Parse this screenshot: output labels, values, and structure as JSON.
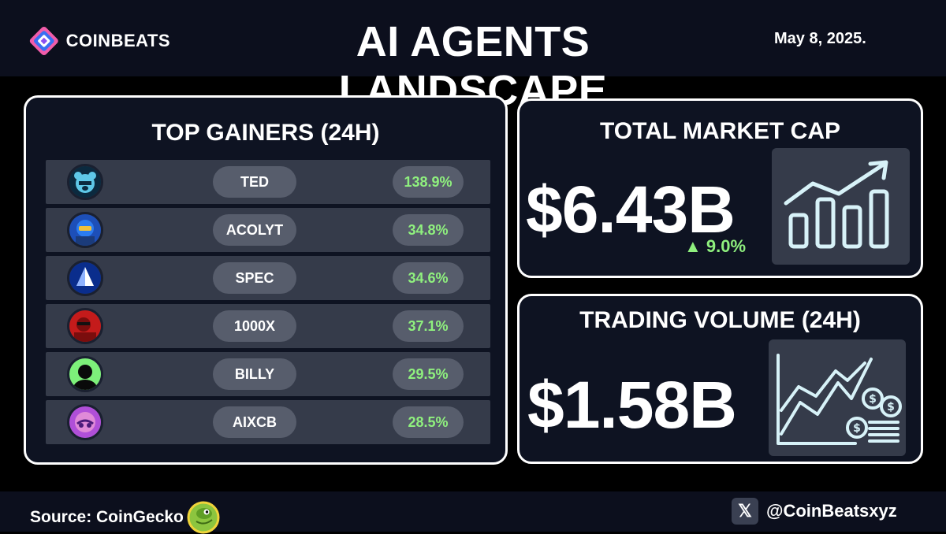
{
  "header": {
    "brand": "COINBEATS",
    "title": "AI AGENTS LANDSCAPE",
    "date": "May 8, 2025."
  },
  "gainers": {
    "heading": "TOP GAINERS (24H)",
    "items": [
      {
        "name": "TED",
        "change": "138.9%",
        "icon": "ted-bear-icon"
      },
      {
        "name": "ACOLYT",
        "change": "34.8%",
        "icon": "acolyt-icon"
      },
      {
        "name": "SPEC",
        "change": "34.6%",
        "icon": "spec-icon"
      },
      {
        "name": "1000X",
        "change": "37.1%",
        "icon": "1000x-icon"
      },
      {
        "name": "BILLY",
        "change": "29.5%",
        "icon": "billy-icon"
      },
      {
        "name": "AIXCB",
        "change": "28.5%",
        "icon": "aixcb-icon"
      }
    ]
  },
  "market_cap": {
    "heading": "TOTAL MARKET CAP",
    "value": "$6.43B",
    "change": "▲ 9.0%",
    "icon": "bar-chart-growth-icon"
  },
  "trading_volume": {
    "heading": "TRADING VOLUME (24H)",
    "value": "$1.58B",
    "icon": "line-chart-coins-icon"
  },
  "footer": {
    "source": "Source: CoinGecko",
    "handle": "@CoinBeatsxyz",
    "x_label": "𝕏"
  },
  "colors": {
    "positive": "#8ff07e",
    "panel_border": "#ffffff",
    "row_bg": "#353b4a",
    "pill_bg": "#575d6c"
  }
}
